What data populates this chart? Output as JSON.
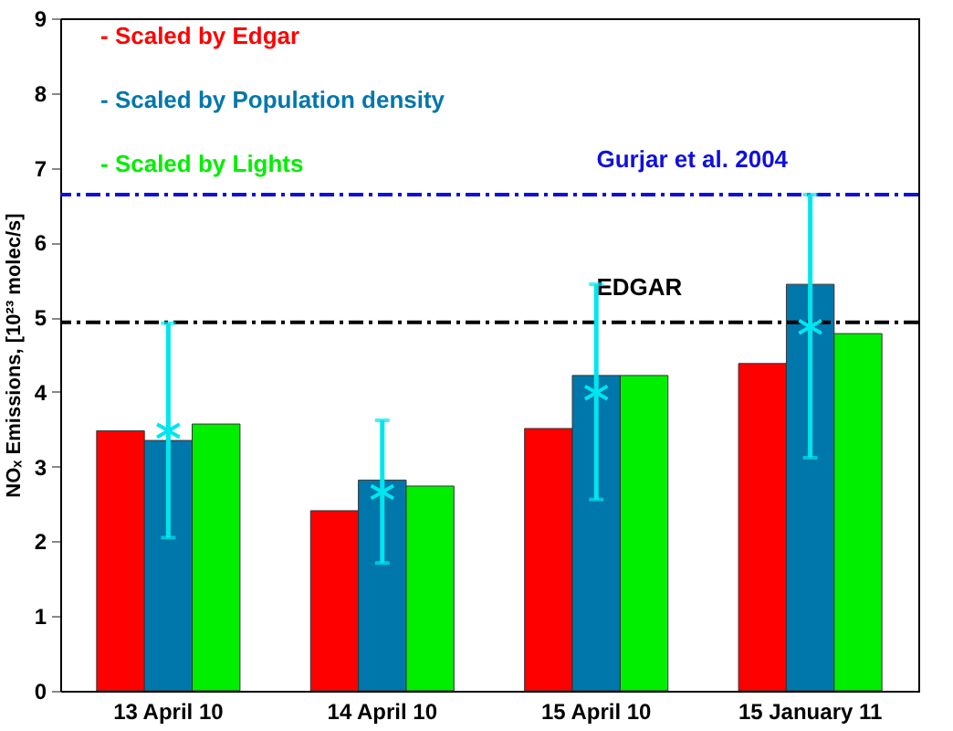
{
  "chart_data": {
    "type": "bar",
    "ylabel": "NOₓ Emissions, [10²³ molec/s]",
    "categories": [
      "13 April 10",
      "14 April 10",
      "15 April 10",
      "15 January 11"
    ],
    "series": [
      {
        "name": "- Scaled by Edgar",
        "color": "#ff0000",
        "values": [
          3.48,
          2.41,
          3.51,
          4.38
        ]
      },
      {
        "name": "- Scaled by Population density",
        "color": "#0077aa",
        "values": [
          3.35,
          2.82,
          4.22,
          5.44
        ]
      },
      {
        "name": "- Scaled by Lights",
        "color": "#00ee00",
        "values": [
          3.57,
          2.74,
          4.22,
          4.78
        ]
      },
      {
        "type": "scatter",
        "color": "#00e5ee",
        "marker": "cross",
        "x": [
          "13 April 10",
          "14 April 10",
          "15 April 10",
          "15 January 11"
        ],
        "values": [
          3.48,
          2.66,
          3.99,
          4.87
        ],
        "errors": [
          [
            2.05,
            4.92
          ],
          [
            1.71,
            3.62
          ],
          [
            2.56,
            5.44
          ],
          [
            3.12,
            6.64
          ]
        ]
      }
    ],
    "ylim": [
      0,
      9
    ],
    "yticks": [
      0,
      1,
      2,
      3,
      4,
      5,
      6,
      7,
      8,
      9
    ],
    "grid": false,
    "legend": "top left",
    "ref_lines": [
      {
        "axis": "y",
        "value": 6.64,
        "label": "Gurjar et al. 2004",
        "color": "#1010dd",
        "line_style": "dashdot"
      },
      {
        "axis": "y",
        "value": 4.93,
        "label": "EDGAR",
        "color": "#000000",
        "line_style": "dashdot"
      }
    ]
  }
}
